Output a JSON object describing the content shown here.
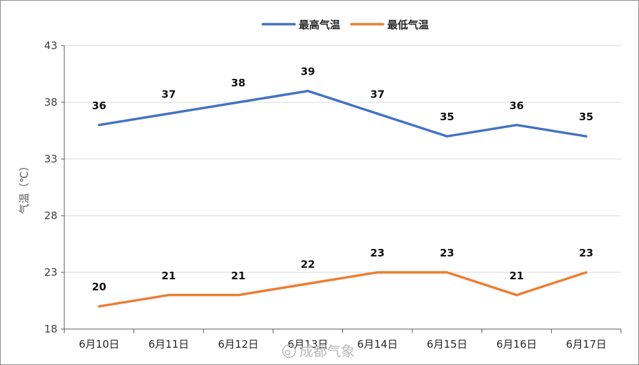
{
  "chart_data": {
    "type": "line",
    "categories": [
      "6月10日",
      "6月11日",
      "6月12日",
      "6月13日",
      "6月14日",
      "6月15日",
      "6月16日",
      "6月17日"
    ],
    "series": [
      {
        "name": "最高气温",
        "color": "#4472c4",
        "values": [
          36,
          37,
          38,
          39,
          37,
          35,
          36,
          35
        ]
      },
      {
        "name": "最低气温",
        "color": "#ed7d31",
        "values": [
          20,
          21,
          21,
          22,
          23,
          23,
          21,
          23
        ]
      }
    ],
    "ylabel": "气温（℃）",
    "xlabel": "",
    "ylim": [
      18,
      43
    ],
    "yticks": [
      18,
      23,
      28,
      33,
      38,
      43
    ],
    "grid": true,
    "legend": "top-center",
    "data_labels": true
  },
  "watermark": {
    "text": "成都气象",
    "icon": "weibo-icon"
  }
}
